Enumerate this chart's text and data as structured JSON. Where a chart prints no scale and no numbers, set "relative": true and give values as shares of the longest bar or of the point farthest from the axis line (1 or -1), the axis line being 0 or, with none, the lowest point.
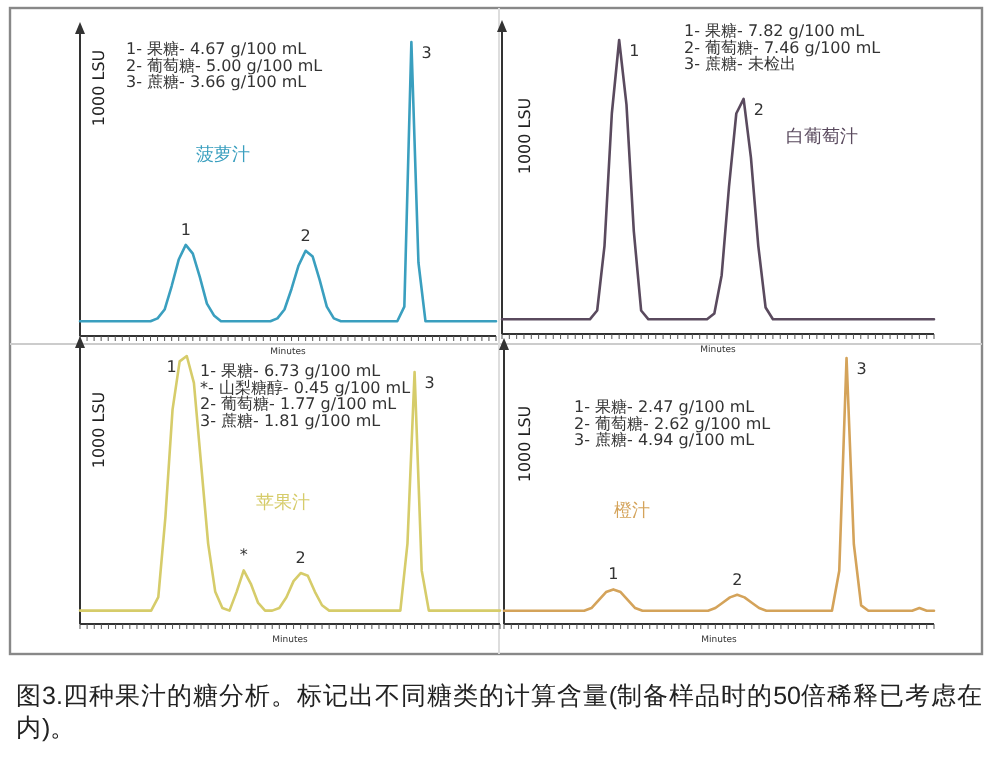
{
  "chart_data": [
    {
      "type": "line",
      "relative": true,
      "xlabel": "Minutes",
      "ylabel": "1000 LSU",
      "categories": [
        null,
        null,
        null,
        null,
        null,
        null,
        null,
        null,
        null,
        null,
        null,
        null,
        null,
        null,
        null,
        null,
        null,
        null,
        null,
        null,
        null,
        null,
        null,
        null,
        null,
        null,
        null,
        null,
        null,
        null,
        null,
        null,
        null,
        null,
        null,
        null,
        null,
        null,
        null,
        null,
        null,
        null,
        null,
        null,
        null,
        null,
        null,
        null,
        null,
        null,
        null,
        null,
        null,
        null,
        null,
        null,
        null,
        null,
        null,
        null
      ],
      "series": [
        {
          "name": "菠萝汁",
          "color": "#3a9fbf",
          "values": [
            0.05,
            0.05,
            0.05,
            0.05,
            0.05,
            0.05,
            0.05,
            0.05,
            0.05,
            0.05,
            0.05,
            0.06,
            0.09,
            0.17,
            0.26,
            0.31,
            0.28,
            0.2,
            0.11,
            0.07,
            0.05,
            0.05,
            0.05,
            0.05,
            0.05,
            0.05,
            0.05,
            0.05,
            0.06,
            0.09,
            0.16,
            0.24,
            0.29,
            0.27,
            0.19,
            0.1,
            0.06,
            0.05,
            0.05,
            0.05,
            0.05,
            0.05,
            0.05,
            0.05,
            0.05,
            0.05,
            0.1,
            1,
            0.25,
            0.05,
            0.05,
            0.05,
            0.05,
            0.05,
            0.05,
            0.05,
            0.05,
            0.05,
            0.05,
            0.05
          ]
        }
      ],
      "annotations": [
        "1- 果糖- 4.67 g/100 mL",
        "2- 葡萄糖- 5.00 g/100 mL",
        "3- 蔗糖- 3.66 g/100 mL",
        "1",
        "2",
        "3"
      ]
    },
    {
      "type": "line",
      "relative": true,
      "xlabel": "Minutes",
      "ylabel": "1000 LSU",
      "categories": [
        null,
        null,
        null,
        null,
        null,
        null,
        null,
        null,
        null,
        null,
        null,
        null,
        null,
        null,
        null,
        null,
        null,
        null,
        null,
        null,
        null,
        null,
        null,
        null,
        null,
        null,
        null,
        null,
        null,
        null,
        null,
        null,
        null,
        null,
        null,
        null,
        null,
        null,
        null,
        null,
        null,
        null,
        null,
        null,
        null,
        null,
        null,
        null,
        null,
        null,
        null,
        null,
        null,
        null,
        null,
        null,
        null,
        null,
        null,
        null
      ],
      "series": [
        {
          "name": "白葡萄汁",
          "color": "#5a4a5e",
          "values": [
            0.05,
            0.05,
            0.05,
            0.05,
            0.05,
            0.05,
            0.05,
            0.05,
            0.05,
            0.05,
            0.05,
            0.05,
            0.05,
            0.08,
            0.3,
            0.75,
            1,
            0.78,
            0.35,
            0.08,
            0.05,
            0.05,
            0.05,
            0.05,
            0.05,
            0.05,
            0.05,
            0.05,
            0.05,
            0.07,
            0.2,
            0.5,
            0.75,
            0.8,
            0.6,
            0.3,
            0.09,
            0.05,
            0.05,
            0.05,
            0.05,
            0.05,
            0.05,
            0.05,
            0.05,
            0.05,
            0.05,
            0.05,
            0.05,
            0.05,
            0.05,
            0.05,
            0.05,
            0.05,
            0.05,
            0.05,
            0.05,
            0.05,
            0.05,
            0.05
          ]
        }
      ],
      "annotations": [
        "1- 果糖- 7.82 g/100 mL",
        "2- 葡萄糖- 7.46 g/100 mL",
        "3- 蔗糖- 未检出",
        "1",
        "2"
      ]
    },
    {
      "type": "line",
      "relative": true,
      "xlabel": "Minutes",
      "ylabel": "1000 LSU",
      "categories": [
        null,
        null,
        null,
        null,
        null,
        null,
        null,
        null,
        null,
        null,
        null,
        null,
        null,
        null,
        null,
        null,
        null,
        null,
        null,
        null,
        null,
        null,
        null,
        null,
        null,
        null,
        null,
        null,
        null,
        null,
        null,
        null,
        null,
        null,
        null,
        null,
        null,
        null,
        null,
        null,
        null,
        null,
        null,
        null,
        null,
        null,
        null,
        null,
        null,
        null,
        null,
        null,
        null,
        null,
        null,
        null,
        null,
        null,
        null,
        null
      ],
      "series": [
        {
          "name": "苹果汁",
          "color": "#d6cc6a",
          "values": [
            0.05,
            0.05,
            0.05,
            0.05,
            0.05,
            0.05,
            0.05,
            0.05,
            0.05,
            0.05,
            0.05,
            0.1,
            0.4,
            0.8,
            0.98,
            1,
            0.9,
            0.6,
            0.3,
            0.12,
            0.06,
            0.05,
            0.12,
            0.2,
            0.15,
            0.08,
            0.05,
            0.05,
            0.06,
            0.1,
            0.16,
            0.19,
            0.18,
            0.12,
            0.07,
            0.05,
            0.05,
            0.05,
            0.05,
            0.05,
            0.05,
            0.05,
            0.05,
            0.05,
            0.05,
            0.05,
            0.3,
            0.94,
            0.2,
            0.05,
            0.05,
            0.05,
            0.05,
            0.05,
            0.05,
            0.05,
            0.05,
            0.05,
            0.05,
            0.05
          ]
        }
      ],
      "annotations": [
        "1- 果糖- 6.73 g/100 mL",
        "*- 山梨糖醇- 0.45 g/100 mL",
        "2- 葡萄糖- 1.77 g/100 mL",
        "3- 蔗糖- 1.81 g/100 mL",
        "1",
        "*",
        "2",
        "3"
      ]
    },
    {
      "type": "line",
      "relative": true,
      "xlabel": "Minutes",
      "ylabel": "1000 LSU",
      "categories": [
        null,
        null,
        null,
        null,
        null,
        null,
        null,
        null,
        null,
        null,
        null,
        null,
        null,
        null,
        null,
        null,
        null,
        null,
        null,
        null,
        null,
        null,
        null,
        null,
        null,
        null,
        null,
        null,
        null,
        null,
        null,
        null,
        null,
        null,
        null,
        null,
        null,
        null,
        null,
        null,
        null,
        null,
        null,
        null,
        null,
        null,
        null,
        null,
        null,
        null,
        null,
        null,
        null,
        null,
        null,
        null,
        null,
        null,
        null,
        null
      ],
      "series": [
        {
          "name": "橙汁",
          "color": "#d4a35a",
          "values": [
            0.05,
            0.05,
            0.05,
            0.05,
            0.05,
            0.05,
            0.05,
            0.05,
            0.05,
            0.05,
            0.05,
            0.05,
            0.06,
            0.09,
            0.12,
            0.13,
            0.12,
            0.09,
            0.06,
            0.05,
            0.05,
            0.05,
            0.05,
            0.05,
            0.05,
            0.05,
            0.05,
            0.05,
            0.05,
            0.06,
            0.08,
            0.1,
            0.11,
            0.1,
            0.08,
            0.06,
            0.05,
            0.05,
            0.05,
            0.05,
            0.05,
            0.05,
            0.05,
            0.05,
            0.05,
            0.05,
            0.2,
            1,
            0.3,
            0.07,
            0.05,
            0.05,
            0.05,
            0.05,
            0.05,
            0.05,
            0.05,
            0.06,
            0.05,
            0.05
          ]
        }
      ],
      "annotations": [
        "1- 果糖- 2.47 g/100 mL",
        "2- 葡萄糖- 2.62 g/100 mL",
        "3- 蔗糖- 4.94 g/100 mL",
        "1",
        "2",
        "3"
      ]
    },
    {
      "type": "other",
      "title": "图3.四种果汁的糖分析。标记出不同糖类的计算含量(制备样品时的50倍稀释已考虑在内)。"
    }
  ]
}
